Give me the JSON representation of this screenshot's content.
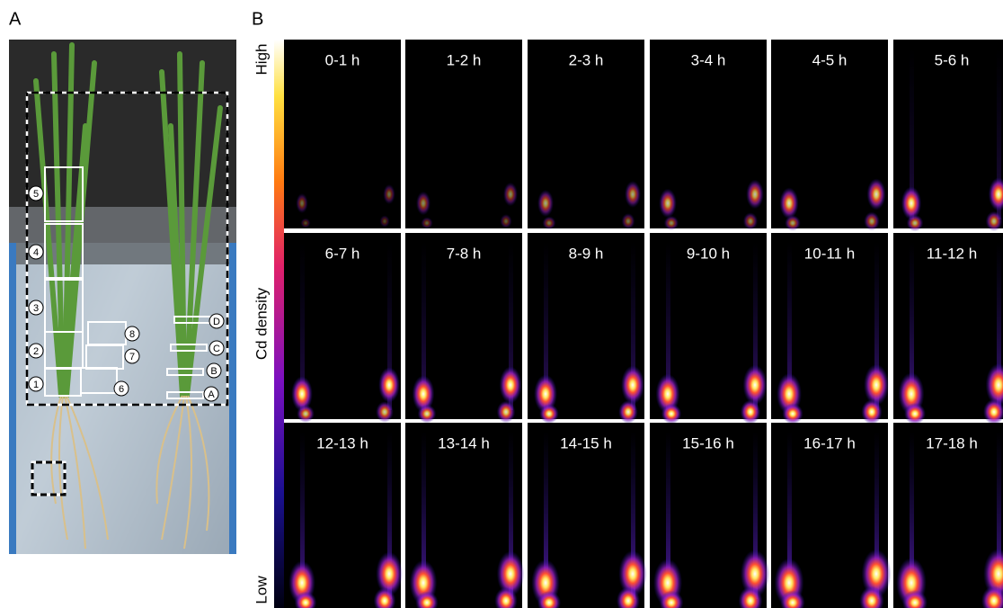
{
  "panel_a": {
    "label": "A",
    "regions": [
      "1",
      "2",
      "3",
      "4",
      "5",
      "6",
      "7",
      "8"
    ],
    "root_regions": [
      "A",
      "B",
      "C",
      "D"
    ]
  },
  "panel_b": {
    "label": "B",
    "colorbar": {
      "high": "High",
      "title": "Cd density",
      "low": "Low"
    },
    "frames": [
      "0-1 h",
      "1-2 h",
      "2-3 h",
      "3-4 h",
      "4-5 h",
      "5-6 h",
      "6-7 h",
      "7-8 h",
      "8-9 h",
      "9-10 h",
      "10-11 h",
      "11-12 h",
      "12-13 h",
      "13-14 h",
      "14-15 h",
      "15-16 h",
      "16-17 h",
      "17-18 h"
    ]
  }
}
